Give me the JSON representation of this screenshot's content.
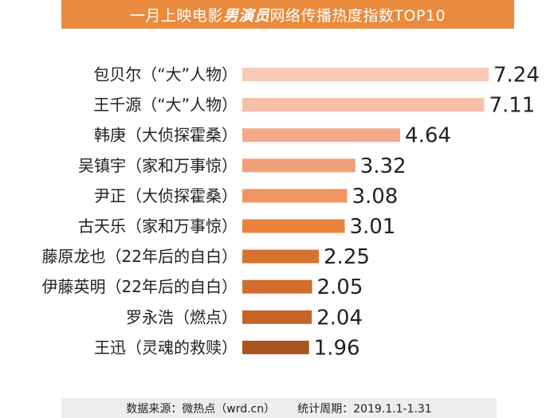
{
  "title": {
    "before": "一月上映电影",
    "emphasis": "男演员",
    "after": "网络传播热度指数TOP10"
  },
  "source": {
    "left": "数据来源：微热点（wrd.cn）",
    "right": "统计周期：2019.1.1-1.31"
  },
  "chart_data": {
    "type": "bar",
    "orientation": "horizontal",
    "categories": [
      "包贝尔（“大”人物）",
      "王千源（“大”人物）",
      "韩庚（大侦探霍桑）",
      "吴镇宇（家和万事惊）",
      "尹正（大侦探霍桑）",
      "古天乐（家和万事惊）",
      "藤原龙也（22年后的自白）",
      "伊藤英明（22年后的自白）",
      "罗永浩（燃点）",
      "王迅（灵魂的救赎）"
    ],
    "values": [
      7.24,
      7.11,
      4.64,
      3.32,
      3.08,
      3.01,
      2.25,
      2.05,
      2.04,
      1.96
    ],
    "value_labels": [
      "7.24",
      "7.11",
      "4.64",
      "3.32",
      "3.08",
      "3.01",
      "2.25",
      "2.05",
      "2.04",
      "1.96"
    ],
    "colors": [
      "#f8c9b5",
      "#f6c0a8",
      "#f2a98a",
      "#f0a078",
      "#ef9560",
      "#e8823c",
      "#d6732e",
      "#d06c2c",
      "#c56426",
      "#a9531f"
    ],
    "xlim": [
      0,
      7.24
    ],
    "grid": false,
    "legend": "none"
  }
}
